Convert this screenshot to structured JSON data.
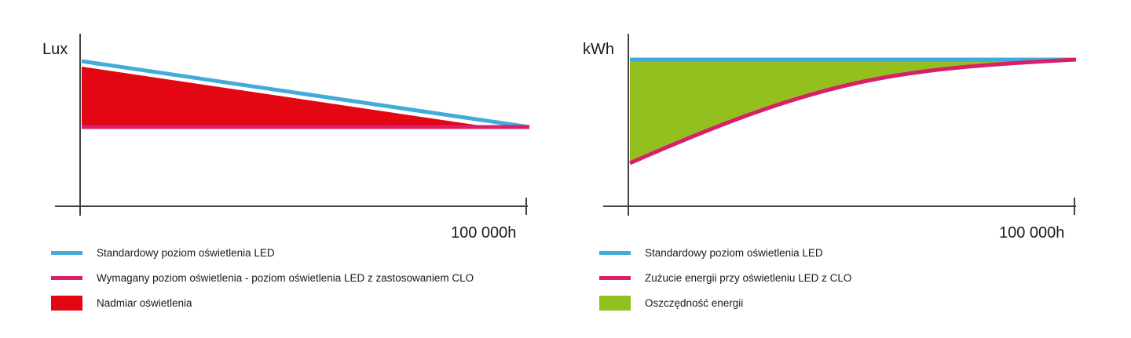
{
  "colors": {
    "blue": "#42abdb",
    "pink": "#d81f6b",
    "red": "#e30613",
    "green": "#93c01f",
    "axis": "#444444"
  },
  "chart_data": [
    {
      "type": "area",
      "ylabel": "Lux",
      "x_end_label": "100 000h",
      "x": [
        0,
        100000
      ],
      "series": [
        {
          "name": "Standardowy poziom oświetlenia LED",
          "kind": "line",
          "color": "blue",
          "values": [
            100,
            0
          ]
        },
        {
          "name": "Wymagany poziom oświetlenia - poziom oświetlenia LED z zastosowaniem CLO",
          "kind": "line",
          "color": "pink",
          "values": [
            0,
            0
          ]
        },
        {
          "name": "Nadmiar oświetlenia",
          "kind": "area",
          "color": "red"
        }
      ]
    },
    {
      "type": "area",
      "ylabel": "kWh",
      "x_end_label": "100 000h",
      "x": [
        0,
        100000
      ],
      "series": [
        {
          "name": "Standardowy poziom oświetlenia LED",
          "kind": "line",
          "color": "blue",
          "values": [
            100,
            100
          ]
        },
        {
          "name": "Zużucie energii przy oświetleniu LED z CLO",
          "kind": "line",
          "color": "pink",
          "curve": "concave",
          "values": [
            0,
            100
          ]
        },
        {
          "name": "Oszczędność energii",
          "kind": "area",
          "color": "green"
        }
      ]
    }
  ]
}
